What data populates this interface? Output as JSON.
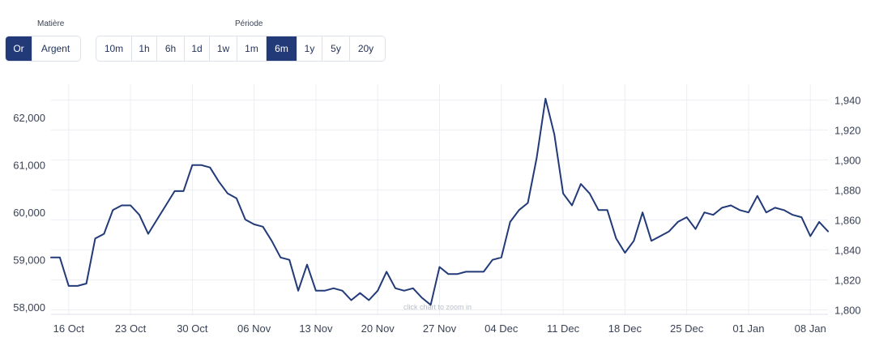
{
  "controls": {
    "metal_label": "Matière",
    "metal_options": [
      "Or",
      "Argent"
    ],
    "metal_selected": "Or",
    "period_label": "Période",
    "period_options": [
      "10m",
      "1h",
      "6h",
      "1d",
      "1w",
      "1m",
      "6m",
      "1y",
      "5y",
      "20y"
    ],
    "period_selected": "6m",
    "accent_color": "#223a78"
  },
  "chart_data": {
    "type": "line",
    "title": "",
    "zoom_hint": "click chart to zoom in",
    "x_tick_labels": [
      "16 Oct",
      "23 Oct",
      "30 Oct",
      "06 Nov",
      "13 Nov",
      "20 Nov",
      "27 Nov",
      "04 Dec",
      "11 Dec",
      "18 Dec",
      "25 Dec",
      "01 Jan",
      "08 Jan"
    ],
    "x_tick_dates": [
      "2023-10-16",
      "2023-10-23",
      "2023-10-30",
      "2023-11-06",
      "2023-11-13",
      "2023-11-20",
      "2023-11-27",
      "2023-12-04",
      "2023-12-11",
      "2023-12-18",
      "2023-12-25",
      "2024-01-01",
      "2024-01-08"
    ],
    "xlim": [
      "2023-10-14",
      "2024-01-10"
    ],
    "y_left_ticks": [
      58000,
      59000,
      60000,
      61000,
      62000
    ],
    "y_left_tick_labels": [
      "58,000",
      "59,000",
      "60,000",
      "61,000",
      "62,000"
    ],
    "y_left_lim": [
      57850,
      62500
    ],
    "y_right_ticks": [
      1800,
      1820,
      1840,
      1860,
      1880,
      1900,
      1920,
      1940
    ],
    "y_right_tick_labels": [
      "1,800",
      "1,820",
      "1,840",
      "1,860",
      "1,880",
      "1,900",
      "1,920",
      "1,940"
    ],
    "y_right_lim": [
      1797,
      1944
    ],
    "grid": true,
    "line_color": "#223a78",
    "series": [
      {
        "x": [
          "2023-10-14",
          "2023-10-15",
          "2023-10-16",
          "2023-10-17",
          "2023-10-18",
          "2023-10-19",
          "2023-10-20",
          "2023-10-21",
          "2023-10-22",
          "2023-10-23",
          "2023-10-24",
          "2023-10-25",
          "2023-10-26",
          "2023-10-27",
          "2023-10-28",
          "2023-10-29",
          "2023-10-30",
          "2023-10-31",
          "2023-11-01",
          "2023-11-02",
          "2023-11-03",
          "2023-11-04",
          "2023-11-05",
          "2023-11-06",
          "2023-11-07",
          "2023-11-08",
          "2023-11-09",
          "2023-11-10",
          "2023-11-11",
          "2023-11-12",
          "2023-11-13",
          "2023-11-14",
          "2023-11-15",
          "2023-11-16",
          "2023-11-17",
          "2023-11-18",
          "2023-11-19",
          "2023-11-20",
          "2023-11-21",
          "2023-11-22",
          "2023-11-23",
          "2023-11-24",
          "2023-11-25",
          "2023-11-26",
          "2023-11-27",
          "2023-11-28",
          "2023-11-29",
          "2023-11-30",
          "2023-12-01",
          "2023-12-02",
          "2023-12-03",
          "2023-12-04",
          "2023-12-05",
          "2023-12-06",
          "2023-12-07",
          "2023-12-08",
          "2023-12-09",
          "2023-12-10",
          "2023-12-11",
          "2023-12-12",
          "2023-12-13",
          "2023-12-14",
          "2023-12-15",
          "2023-12-16",
          "2023-12-17",
          "2023-12-18",
          "2023-12-19",
          "2023-12-20",
          "2023-12-21",
          "2023-12-22",
          "2023-12-23",
          "2023-12-24",
          "2023-12-25",
          "2023-12-26",
          "2023-12-27",
          "2023-12-28",
          "2023-12-29",
          "2023-12-30",
          "2023-12-31",
          "2024-01-01",
          "2024-01-02",
          "2024-01-03",
          "2024-01-04",
          "2024-01-05",
          "2024-01-06",
          "2024-01-07",
          "2024-01-08",
          "2024-01-09",
          "2024-01-10"
        ],
        "y": [
          59050,
          59050,
          58450,
          58450,
          58500,
          59450,
          59550,
          60050,
          60150,
          60150,
          59950,
          59550,
          59850,
          60150,
          60450,
          60450,
          61000,
          61000,
          60950,
          60650,
          60400,
          60300,
          59850,
          59750,
          59700,
          59400,
          59050,
          59000,
          58350,
          58900,
          58350,
          58350,
          58400,
          58350,
          58150,
          58300,
          58150,
          58350,
          58750,
          58400,
          58350,
          58400,
          58200,
          58050,
          58850,
          58700,
          58700,
          58750,
          58750,
          58750,
          59000,
          59050,
          59800,
          60050,
          60200,
          61150,
          62400,
          61650,
          60400,
          60150,
          60600,
          60400,
          60050,
          60050,
          59450,
          59150,
          59400,
          60000,
          59400,
          59500,
          59600,
          59800,
          59900,
          59650,
          60000,
          59950,
          60100,
          60150,
          60050,
          60000,
          60350,
          60000,
          60100,
          60050,
          59950,
          59900,
          59500,
          59800,
          59600
        ]
      }
    ]
  }
}
